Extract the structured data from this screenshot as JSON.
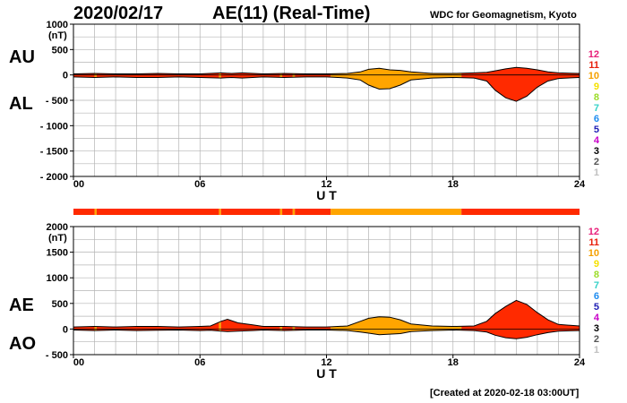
{
  "header": {
    "date": "2020/02/17",
    "title": "AE(11) (Real-Time)",
    "source": "WDC for Geomagnetism, Kyoto"
  },
  "footer": {
    "created": "[Created at 2020-02-18 03:00UT]"
  },
  "legend": {
    "numbers": [
      "12",
      "11",
      "10",
      "9",
      "8",
      "7",
      "6",
      "5",
      "4",
      "3",
      "2",
      "1"
    ],
    "colors": [
      "#e8207a",
      "#e8200c",
      "#f5a000",
      "#f5e100",
      "#9bdc28",
      "#37d2c8",
      "#1e8cf0",
      "#1e1eb4",
      "#c800c8",
      "#000000",
      "#555555",
      "#c0c0c0"
    ]
  },
  "colors": {
    "red": "#ff2a00",
    "orange": "#ffa500",
    "yellow": "#ffd400",
    "grid": "#b4b4b4"
  },
  "chart_data": [
    {
      "type": "area",
      "name": "AU/AL",
      "left_labels": [
        "AU",
        "AL"
      ],
      "y_unit": "(nT)",
      "xlabel": "U T",
      "ylim": [
        -2000,
        1000
      ],
      "y_ticks": [
        1000,
        500,
        0,
        -500,
        -1000,
        -1500,
        -2000
      ],
      "y_tick_labels": [
        "1000",
        "500",
        "0",
        "- 500",
        "- 1000",
        "- 1500",
        "- 2000"
      ],
      "x_ticks": [
        0,
        6,
        12,
        18,
        24
      ],
      "x_tick_labels": [
        "00",
        "06",
        "12",
        "18",
        "24"
      ],
      "x": [
        0,
        1,
        2,
        3,
        4,
        5,
        6,
        7,
        7.5,
        8,
        9,
        10,
        11,
        12,
        13,
        13.6,
        14,
        14.5,
        15,
        15.5,
        16,
        17,
        18,
        19,
        19.6,
        20,
        20.5,
        21,
        21.5,
        22,
        22.5,
        23,
        24
      ],
      "series": [
        {
          "name": "AU",
          "values": [
            20,
            30,
            20,
            20,
            30,
            20,
            20,
            40,
            30,
            40,
            20,
            30,
            20,
            20,
            30,
            60,
            110,
            130,
            100,
            90,
            60,
            30,
            30,
            40,
            50,
            80,
            120,
            150,
            130,
            100,
            60,
            40,
            30
          ]
        },
        {
          "name": "AL",
          "values": [
            -40,
            -50,
            -40,
            -50,
            -50,
            -40,
            -50,
            -60,
            -50,
            -60,
            -40,
            -50,
            -40,
            -40,
            -60,
            -100,
            -200,
            -280,
            -270,
            -200,
            -100,
            -60,
            -50,
            -60,
            -120,
            -300,
            -450,
            -520,
            -420,
            -240,
            -120,
            -70,
            -50
          ]
        }
      ]
    },
    {
      "type": "area",
      "name": "AE/AO",
      "left_labels": [
        "AE",
        "AO"
      ],
      "y_unit": "(nT)",
      "xlabel": "U T",
      "ylim": [
        -500,
        2000
      ],
      "y_ticks": [
        2000,
        1500,
        1000,
        500,
        0,
        -500
      ],
      "y_tick_labels": [
        "2000",
        "1500",
        "1000",
        "500",
        "0",
        "- 500"
      ],
      "x_ticks": [
        0,
        6,
        12,
        18,
        24
      ],
      "x_tick_labels": [
        "00",
        "06",
        "12",
        "18",
        "24"
      ],
      "x": [
        0,
        1,
        2,
        3,
        4,
        5,
        6,
        6.5,
        7,
        7.3,
        7.8,
        8.5,
        9,
        10,
        11,
        12,
        13,
        13.6,
        14,
        14.5,
        15,
        15.5,
        16,
        17,
        18,
        19,
        19.6,
        20,
        20.5,
        21,
        21.5,
        22,
        22.5,
        23,
        24
      ],
      "series": [
        {
          "name": "AE",
          "values": [
            40,
            50,
            40,
            50,
            50,
            40,
            50,
            60,
            150,
            190,
            120,
            80,
            50,
            50,
            40,
            40,
            60,
            150,
            210,
            240,
            230,
            180,
            100,
            60,
            50,
            60,
            150,
            300,
            440,
            560,
            480,
            320,
            180,
            90,
            60
          ]
        },
        {
          "name": "AO",
          "values": [
            -20,
            -30,
            -20,
            -30,
            -25,
            -20,
            -30,
            -25,
            -40,
            -50,
            -40,
            -30,
            -20,
            -30,
            -20,
            -20,
            -30,
            -60,
            -80,
            -110,
            -100,
            -90,
            -50,
            -30,
            -20,
            -30,
            -60,
            -120,
            -170,
            -190,
            -160,
            -110,
            -70,
            -40,
            -30
          ]
        }
      ]
    }
  ],
  "station_bar": {
    "description_hint": "color per time segment (hours UT)",
    "segments": [
      {
        "from": 0,
        "to": 1.0,
        "color": "red"
      },
      {
        "from": 1.0,
        "to": 1.1,
        "color": "orange"
      },
      {
        "from": 1.1,
        "to": 6.9,
        "color": "red"
      },
      {
        "from": 6.9,
        "to": 7.0,
        "color": "orange"
      },
      {
        "from": 7.0,
        "to": 9.8,
        "color": "red"
      },
      {
        "from": 9.8,
        "to": 9.9,
        "color": "orange"
      },
      {
        "from": 9.9,
        "to": 10.4,
        "color": "red"
      },
      {
        "from": 10.4,
        "to": 10.5,
        "color": "orange"
      },
      {
        "from": 10.5,
        "to": 12.2,
        "color": "red"
      },
      {
        "from": 12.2,
        "to": 18.4,
        "color": "orange"
      },
      {
        "from": 18.4,
        "to": 24,
        "color": "red"
      }
    ]
  }
}
